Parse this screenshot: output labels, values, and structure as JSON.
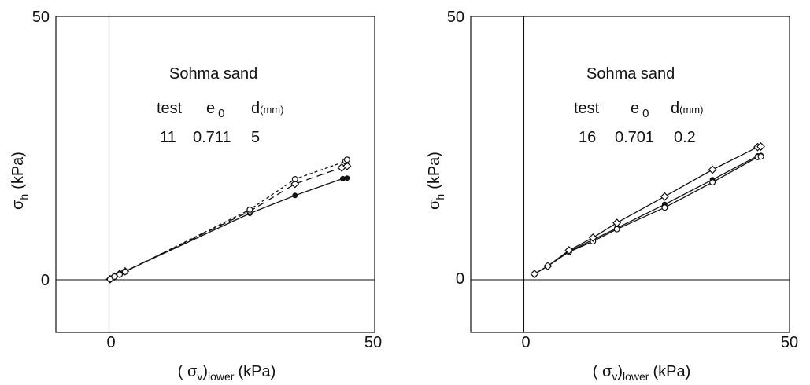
{
  "chart_data": [
    {
      "type": "line",
      "xlim": [
        -10,
        50
      ],
      "ylim": [
        -10,
        50
      ],
      "x_ticks": [
        "0",
        "50"
      ],
      "y_ticks": [
        "0",
        "50"
      ],
      "ylabel_symbol": "σ",
      "ylabel_sub": "h",
      "ylabel_unit": "(kPa)",
      "xlabel_pre": "( σ",
      "xlabel_sub1": "v",
      "xlabel_mid": ")",
      "xlabel_sub2": "lower",
      "xlabel_unit": "(kPa)",
      "annotation": {
        "material": "Sohma sand",
        "col_test": "test",
        "col_e": "e",
        "col_e_sub": "0",
        "col_d": "d",
        "col_d_unit": "(mm)",
        "test": "11",
        "e0": "0.711",
        "d": "5"
      },
      "series": [
        {
          "marker": "dot",
          "dash": "solid",
          "points": [
            [
              0.2,
              0.1
            ],
            [
              1.0,
              0.7
            ],
            [
              2.0,
              1.1
            ],
            [
              3.0,
              1.6
            ],
            [
              26.5,
              12.6
            ],
            [
              35.0,
              16.0
            ],
            [
              44.0,
              19.2
            ],
            [
              44.8,
              19.3
            ]
          ]
        },
        {
          "marker": "diamond",
          "dash": "long-dash",
          "points": [
            [
              0.2,
              0.1
            ],
            [
              1.0,
              0.6
            ],
            [
              2.0,
              1.1
            ],
            [
              3.0,
              1.6
            ],
            [
              26.5,
              13.0
            ],
            [
              35.0,
              18.2
            ],
            [
              43.8,
              21.3
            ],
            [
              44.8,
              21.6
            ]
          ]
        },
        {
          "marker": "circle",
          "dash": "short-dash",
          "points": [
            [
              0.2,
              0.1
            ],
            [
              1.0,
              0.6
            ],
            [
              2.0,
              1.0
            ],
            [
              3.0,
              1.5
            ],
            [
              26.5,
              13.3
            ],
            [
              35.0,
              19.1
            ],
            [
              44.5,
              22.5
            ],
            [
              44.8,
              22.8
            ]
          ]
        }
      ]
    },
    {
      "type": "line",
      "xlim": [
        -10,
        50
      ],
      "ylim": [
        -10,
        50
      ],
      "x_ticks": [
        "0",
        "50"
      ],
      "y_ticks": [
        "0",
        "50"
      ],
      "ylabel_symbol": "σ",
      "ylabel_sub": "h",
      "ylabel_unit": "(kPa)",
      "xlabel_pre": "( σ",
      "xlabel_sub1": "v",
      "xlabel_mid": ")",
      "xlabel_sub2": "lower",
      "xlabel_unit": "(kPa)",
      "annotation": {
        "material": "Sohma sand",
        "col_test": "test",
        "col_e": "e",
        "col_e_sub": "0",
        "col_d": "d",
        "col_d_unit": "(mm)",
        "test": "16",
        "e0": "0.701",
        "d": "0.2"
      },
      "series": [
        {
          "marker": "dot",
          "dash": "solid",
          "points": [
            [
              2.0,
              1.1
            ],
            [
              4.5,
              2.6
            ],
            [
              8.5,
              5.4
            ],
            [
              13.0,
              7.6
            ],
            [
              17.5,
              9.8
            ],
            [
              26.5,
              14.3
            ],
            [
              35.5,
              19.0
            ],
            [
              44.0,
              23.5
            ],
            [
              44.6,
              23.6
            ]
          ]
        },
        {
          "marker": "circle",
          "dash": "solid",
          "points": [
            [
              2.0,
              1.1
            ],
            [
              4.5,
              2.6
            ],
            [
              8.5,
              5.3
            ],
            [
              13.0,
              7.3
            ],
            [
              17.5,
              9.6
            ],
            [
              26.5,
              13.7
            ],
            [
              35.5,
              18.5
            ],
            [
              44.0,
              23.3
            ],
            [
              44.6,
              23.4
            ]
          ]
        },
        {
          "marker": "diamond",
          "dash": "solid",
          "points": [
            [
              2.0,
              1.1
            ],
            [
              4.5,
              2.6
            ],
            [
              8.5,
              5.6
            ],
            [
              13.0,
              8.0
            ],
            [
              17.5,
              10.8
            ],
            [
              26.5,
              15.8
            ],
            [
              35.5,
              20.9
            ],
            [
              44.0,
              25.2
            ],
            [
              44.6,
              25.3
            ]
          ]
        }
      ]
    }
  ]
}
